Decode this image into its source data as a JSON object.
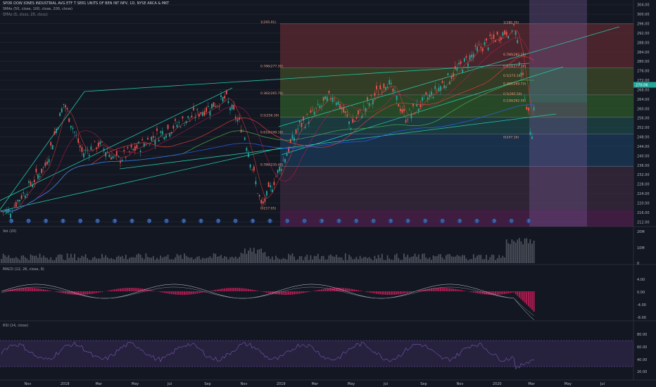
{
  "header": {
    "symbol_line": "SPDR DOW JONES INDUSTRIAL AVG ETF T SER1 UNITS OF BEN INT NPV, 1D, NYSE ARCA & MKT",
    "sma1": "SMAs (50, close, 100, close, 200, close)",
    "sma2": "SMAs (6, close, 20, close)"
  },
  "panes": {
    "vol": {
      "label": "Vol (20)",
      "ticks": [
        "20M",
        "10M",
        "0"
      ]
    },
    "macd": {
      "label": "MACD (12, 26, close, 9)",
      "ticks": [
        "4.00",
        "0.00",
        "-4.00",
        "-8.00"
      ]
    },
    "rsi": {
      "label": "RSI (14, close)",
      "ticks": [
        "80.00",
        "60.00",
        "40.00",
        "20.00"
      ]
    }
  },
  "colors": {
    "background": "#131722",
    "up": "#26a69a",
    "down": "#ef5350",
    "sma_red": "#e23b3b",
    "sma_green": "#4caf50",
    "sma_blue": "#2962ff",
    "trendline": "#26d7b7",
    "price_label": "#26a69a",
    "macd_hist": "#e91e63",
    "rsi_fill": "#7e57c2"
  },
  "chart_data": {
    "type": "candlestick",
    "y_axis_ticks": [
      "304.00",
      "300.00",
      "296.00",
      "292.00",
      "288.00",
      "284.00",
      "280.00",
      "276.00",
      "272.00",
      "268.00",
      "264.00",
      "260.00",
      "256.00",
      "252.00",
      "248.00",
      "244.00",
      "240.00",
      "236.00",
      "232.00",
      "228.00",
      "224.00",
      "220.00",
      "216.00",
      "212.00"
    ],
    "ylim": [
      210,
      306
    ],
    "current_price": "270.06",
    "x_ticks": [
      "Nov",
      "2018",
      "Mar",
      "May",
      "Jul",
      "Sep",
      "Nov",
      "2019",
      "Mar",
      "May",
      "Jul",
      "Sep",
      "Nov",
      "2020",
      "Mar",
      "May",
      "Jul"
    ],
    "fib_levels": [
      {
        "label": "1(295.91)",
        "value": 295.91,
        "band": "#5c2a30"
      },
      {
        "label": "0.786(277.30)",
        "value": 277.3,
        "band": "#3f4a26"
      },
      {
        "label": "0.382(265.79)",
        "value": 265.79,
        "band": "#2f5a2a"
      },
      {
        "label": "0.5(256.30)",
        "value": 256.3,
        "band": "#1d4747"
      },
      {
        "label": "0.618(249.18)",
        "value": 249.18,
        "band": "#1b3a57"
      },
      {
        "label": "0.786(235.48)",
        "value": 235.48,
        "band": "#3a2a3c"
      },
      {
        "label": "0(217.05)",
        "value": 217.05,
        "band": "#4a2432"
      }
    ],
    "fib_levels_right": [
      "1(295.70)",
      "0.786(282.20)",
      "0.618(277.30)",
      "0.5(273.16)",
      "0.382(269.73)",
      "0.236(262.59)",
      "0.5(265.50)",
      "0(247.16)"
    ],
    "anchors": [
      {
        "date": "2017-10",
        "close": 216.5
      },
      {
        "date": "2017-12",
        "close": 236
      },
      {
        "date": "2018-01",
        "close": 262.5
      },
      {
        "date": "2018-02",
        "close": 241
      },
      {
        "date": "2018-03",
        "close": 245
      },
      {
        "date": "2018-04",
        "close": 238
      },
      {
        "date": "2018-06",
        "close": 248
      },
      {
        "date": "2018-08",
        "close": 256
      },
      {
        "date": "2018-10",
        "close": 264.5
      },
      {
        "date": "2018-11",
        "close": 250
      },
      {
        "date": "2018-12",
        "close": 218
      },
      {
        "date": "2019-02",
        "close": 252
      },
      {
        "date": "2019-04",
        "close": 266
      },
      {
        "date": "2019-05",
        "close": 253
      },
      {
        "date": "2019-07",
        "close": 272
      },
      {
        "date": "2019-08",
        "close": 256
      },
      {
        "date": "2019-10",
        "close": 270
      },
      {
        "date": "2019-12",
        "close": 285
      },
      {
        "date": "2020-02",
        "close": 295
      },
      {
        "date": "2020-03",
        "close": 248
      },
      {
        "date": "2020-03-08",
        "close": 270
      }
    ],
    "event_markers": "D",
    "xlabel": "",
    "ylabel": ""
  }
}
